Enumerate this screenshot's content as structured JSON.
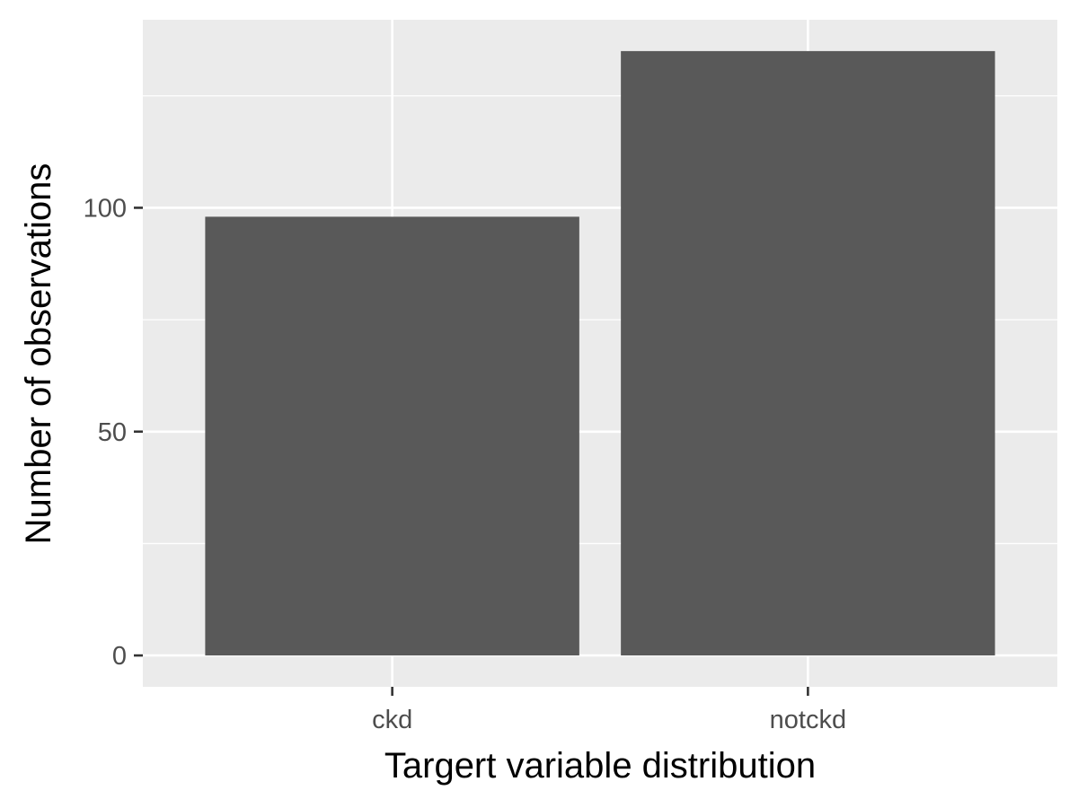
{
  "chart_data": {
    "type": "bar",
    "categories": [
      "ckd",
      "notckd"
    ],
    "values": [
      98,
      135
    ],
    "title": "",
    "xlabel": "Targert variable distribution",
    "ylabel": "Number of observations",
    "ylim": [
      -7,
      142
    ],
    "yticks": [
      0,
      50,
      100
    ],
    "ytick_labels": [
      "0",
      "50",
      "100"
    ],
    "grid": true,
    "colors": {
      "bar": "#595959",
      "panel": "#ebebeb",
      "grid": "#ffffff",
      "tick_label": "#4d4d4d",
      "axis_title": "#000000"
    }
  }
}
